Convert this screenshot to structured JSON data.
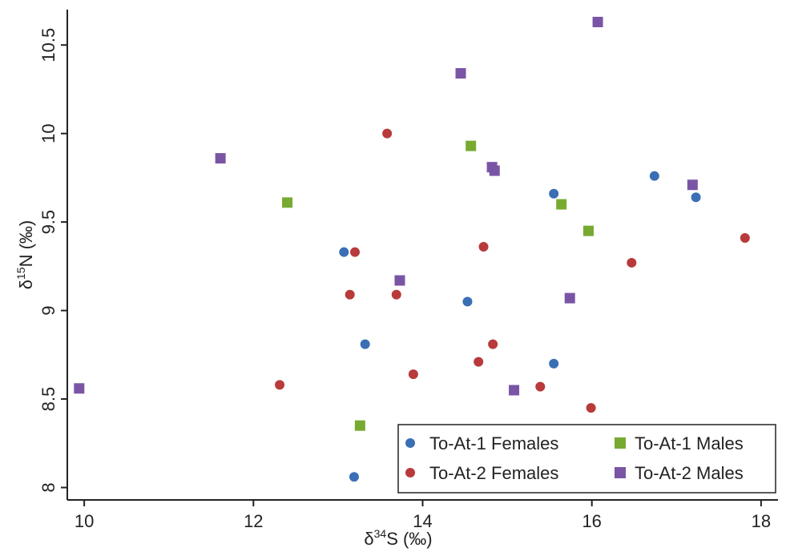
{
  "chart_data": {
    "type": "scatter",
    "xlabel_base": "δ",
    "xlabel_sup": "34",
    "xlabel_rest": "S (‰)",
    "ylabel_base": "δ",
    "ylabel_sup": "15",
    "ylabel_rest": "N (‰)",
    "xlim": [
      9.8,
      18.2
    ],
    "ylim": [
      7.93,
      10.7
    ],
    "xticks": [
      10,
      12,
      14,
      16,
      18
    ],
    "yticks": [
      8,
      8.5,
      9,
      9.5,
      10,
      10.5
    ],
    "legend_position": "bottom-right",
    "series": [
      {
        "name": "To-At-1 Females",
        "marker": "circle",
        "color": "#3a6fb5",
        "points": [
          {
            "x": 13.07,
            "y": 9.33
          },
          {
            "x": 13.32,
            "y": 8.81
          },
          {
            "x": 14.53,
            "y": 9.05
          },
          {
            "x": 15.55,
            "y": 9.66
          },
          {
            "x": 15.55,
            "y": 8.7
          },
          {
            "x": 16.74,
            "y": 9.76
          },
          {
            "x": 17.23,
            "y": 9.64
          },
          {
            "x": 13.19,
            "y": 8.06
          }
        ]
      },
      {
        "name": "To-At-2 Females",
        "marker": "circle",
        "color": "#b83a3a",
        "points": [
          {
            "x": 13.58,
            "y": 10.0
          },
          {
            "x": 13.2,
            "y": 9.33
          },
          {
            "x": 13.14,
            "y": 9.09
          },
          {
            "x": 13.69,
            "y": 9.09
          },
          {
            "x": 12.31,
            "y": 8.58
          },
          {
            "x": 13.89,
            "y": 8.64
          },
          {
            "x": 14.72,
            "y": 9.36
          },
          {
            "x": 14.83,
            "y": 8.81
          },
          {
            "x": 14.66,
            "y": 8.71
          },
          {
            "x": 15.39,
            "y": 8.57
          },
          {
            "x": 15.99,
            "y": 8.45
          },
          {
            "x": 16.47,
            "y": 9.27
          },
          {
            "x": 17.81,
            "y": 9.41
          }
        ]
      },
      {
        "name": "To-At-1 Males",
        "marker": "square",
        "color": "#78aa32",
        "points": [
          {
            "x": 12.4,
            "y": 9.61
          },
          {
            "x": 14.57,
            "y": 9.93
          },
          {
            "x": 15.64,
            "y": 9.6
          },
          {
            "x": 15.96,
            "y": 9.45
          },
          {
            "x": 13.26,
            "y": 8.35
          }
        ]
      },
      {
        "name": "To-At-2 Males",
        "marker": "square",
        "color": "#7a55a5",
        "points": [
          {
            "x": 11.61,
            "y": 9.86
          },
          {
            "x": 14.45,
            "y": 10.34
          },
          {
            "x": 16.07,
            "y": 10.63
          },
          {
            "x": 14.82,
            "y": 9.81
          },
          {
            "x": 14.85,
            "y": 9.79
          },
          {
            "x": 17.19,
            "y": 9.71
          },
          {
            "x": 13.73,
            "y": 9.17
          },
          {
            "x": 15.74,
            "y": 9.07
          },
          {
            "x": 15.08,
            "y": 8.55
          },
          {
            "x": 9.94,
            "y": 8.56
          }
        ]
      }
    ]
  }
}
